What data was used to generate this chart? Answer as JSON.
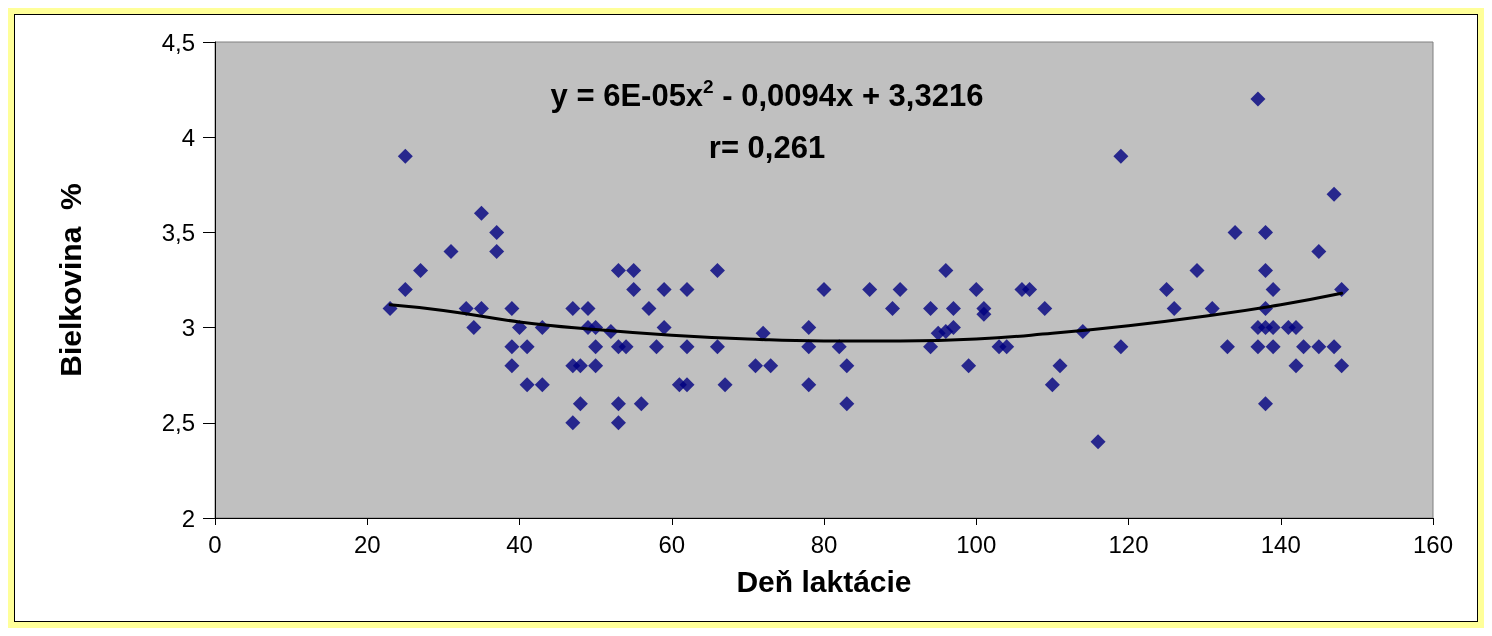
{
  "chart_data": {
    "type": "scatter",
    "xlabel": "Deň laktácie",
    "ylabel": "Bielkovina  %",
    "annotations": [
      "y = 6E-05x$^{2}$ - 0,0094x + 3,3216",
      "r= 0,261"
    ],
    "xlim": [
      0,
      160
    ],
    "xticks": [
      0,
      20,
      40,
      60,
      80,
      100,
      120,
      140,
      160
    ],
    "ylim": [
      2,
      4.5
    ],
    "yticks": [
      2,
      {
        "value": 2.5,
        "label": "2,5"
      },
      3,
      {
        "value": 3.5,
        "label": "3,5"
      },
      4,
      {
        "value": 4.5,
        "label": "4,5"
      }
    ],
    "grid": false,
    "series": [
      {
        "marker": "diamond",
        "color": "#000080",
        "x": [
          23,
          25,
          25,
          27,
          31,
          33,
          34,
          35,
          35,
          37,
          37,
          39,
          39,
          39,
          40,
          41,
          41,
          43,
          43,
          47,
          47,
          47,
          48,
          49,
          49,
          48,
          50,
          50,
          50,
          52,
          53,
          53,
          53,
          53,
          54,
          55,
          55,
          56,
          57,
          58,
          59,
          59,
          61,
          62,
          62,
          62,
          66,
          66,
          67,
          71,
          72,
          73,
          78,
          78,
          78,
          80,
          82,
          83,
          83,
          86,
          89,
          90,
          94,
          94,
          95,
          96,
          96,
          97,
          97,
          99,
          100,
          101,
          101,
          103,
          104,
          106,
          107,
          109,
          110,
          111,
          114,
          116,
          119,
          119,
          125,
          126,
          129,
          131,
          133,
          134,
          137,
          137,
          137,
          138,
          138,
          138,
          138,
          139,
          139,
          139,
          141,
          142,
          142,
          143,
          145,
          145,
          147,
          147,
          148,
          148,
          138
        ],
        "values": [
          3.1,
          3.9,
          3.2,
          3.3,
          3.4,
          3.1,
          3.0,
          3.6,
          3.1,
          3.5,
          3.4,
          3.1,
          2.9,
          2.8,
          3.0,
          2.9,
          2.7,
          3.0,
          2.7,
          3.1,
          2.8,
          2.5,
          2.8,
          3.1,
          3.0,
          2.6,
          3.0,
          2.9,
          2.8,
          2.98,
          3.3,
          2.9,
          2.6,
          2.5,
          2.9,
          3.3,
          3.2,
          2.6,
          3.1,
          2.9,
          3.2,
          3.0,
          2.7,
          3.2,
          2.9,
          2.7,
          3.3,
          2.9,
          2.7,
          2.8,
          2.97,
          2.8,
          3.0,
          2.9,
          2.7,
          3.2,
          2.9,
          2.8,
          2.6,
          3.2,
          3.1,
          3.2,
          3.1,
          2.9,
          2.97,
          3.3,
          2.98,
          3.1,
          3.0,
          2.8,
          3.2,
          3.1,
          3.07,
          2.9,
          2.9,
          3.2,
          3.2,
          3.1,
          2.7,
          2.8,
          2.98,
          2.4,
          3.9,
          2.9,
          3.2,
          3.1,
          3.3,
          3.1,
          2.9,
          3.5,
          4.2,
          3.0,
          2.9,
          3.5,
          3.3,
          3.1,
          2.6,
          3.2,
          3.0,
          2.9,
          3.0,
          3.0,
          2.8,
          2.9,
          2.9,
          3.4,
          3.7,
          2.9,
          3.2,
          2.8,
          3.0
        ]
      },
      {
        "type": "line",
        "marker": "none",
        "line_style": "solid",
        "color": "#000000",
        "x": [
          23,
          30,
          40,
          50,
          60,
          70,
          80,
          90,
          100,
          110,
          120,
          130,
          140,
          148
        ],
        "values": [
          3.12,
          3.09,
          3.03,
          2.99,
          2.96,
          2.94,
          2.93,
          2.93,
          2.94,
          2.97,
          3.01,
          3.06,
          3.12,
          3.18
        ]
      }
    ]
  }
}
